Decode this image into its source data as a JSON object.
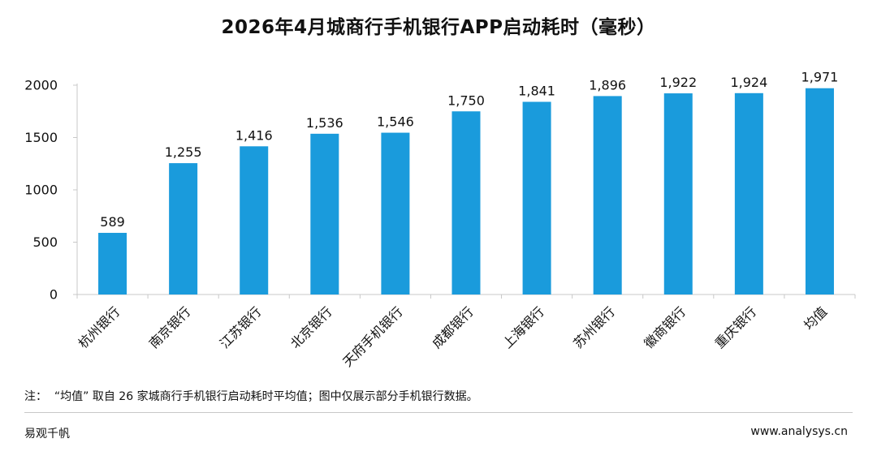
{
  "header": {
    "title": "2026年4月城商行手机银行APP启动耗时（毫秒）"
  },
  "chart_data": {
    "type": "bar",
    "categories": [
      "杭州银行",
      "南京银行",
      "江苏银行",
      "北京银行",
      "天府手机银行",
      "成都银行",
      "上海银行",
      "苏州银行",
      "徽商银行",
      "重庆银行",
      "均值"
    ],
    "values": [
      589,
      1255,
      1416,
      1536,
      1546,
      1750,
      1841,
      1896,
      1922,
      1924,
      1971
    ],
    "data_labels": [
      "589",
      "1,255",
      "1,416",
      "1,536",
      "1,546",
      "1,750",
      "1,841",
      "1,896",
      "1,922",
      "1,924",
      "1,971"
    ],
    "yticks": [
      0,
      500,
      1000,
      1500,
      2000
    ],
    "ylim": [
      0,
      2000
    ],
    "xlabel": "",
    "ylabel": "",
    "grid": false,
    "bar_color": "#1a9bdc",
    "axis_color": "#c8c8c8"
  },
  "footer": {
    "note": "注：  “均值” 取自 26 家城商行手机银行启动耗时平均值；图中仅展示部分手机银行数据。",
    "source": "易观千帆",
    "website": "www.analysys.cn"
  }
}
